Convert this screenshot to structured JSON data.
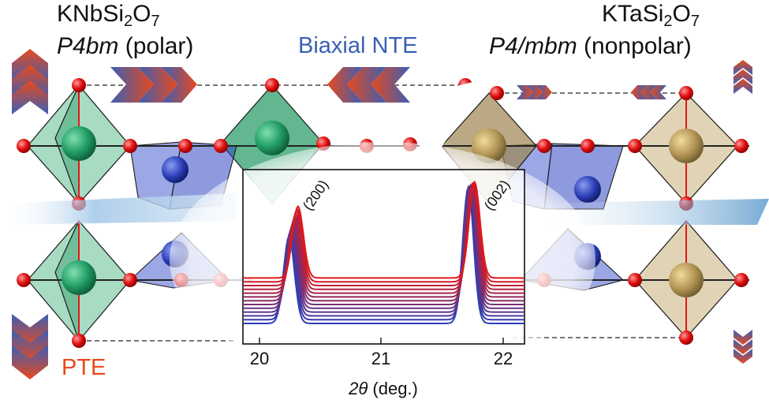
{
  "left_compound": {
    "formula_main": "KNbSi",
    "formula_sub1": "2",
    "formula_mid": "O",
    "formula_sub2": "7",
    "space_group_italic": "P4bm",
    "space_group_note": " (polar)"
  },
  "right_compound": {
    "formula_main": "KTaSi",
    "formula_sub1": "2",
    "formula_mid": "O",
    "formula_sub2": "7",
    "space_group_italic": "P4/mbm",
    "space_group_note": " (nonpolar)"
  },
  "labels": {
    "biaxial_ntE": "Biaxial NTE",
    "pte": "PTE"
  },
  "colors": {
    "ntE_blue": "#3a5fb5",
    "pte_orange": "#e8491d",
    "nb_green": "#2e9e6b",
    "ta_gold": "#b8a06a",
    "oxygen_red": "#e11818",
    "si_blue": "#2b3fb8"
  },
  "inset_plot": {
    "xlabel_var": "2θ",
    "xlabel_unit": " (deg.)",
    "x_ticks": [
      "20",
      "21",
      "22"
    ],
    "peak_labels": [
      "(200)",
      "(002)"
    ]
  },
  "chart_data": {
    "type": "line",
    "xlabel": "2θ (deg.)",
    "xlim": [
      19.9,
      22.1
    ],
    "x_ticks": [
      20,
      21,
      22
    ],
    "annotations": [
      "(200)",
      "(002)"
    ],
    "series_count": 13,
    "color_gradient": [
      "#2b3fb8",
      "#e11818"
    ],
    "peaks_deg": {
      "(200)": [
        20.26,
        20.33
      ],
      "(002)": [
        21.66,
        21.71
      ]
    }
  }
}
